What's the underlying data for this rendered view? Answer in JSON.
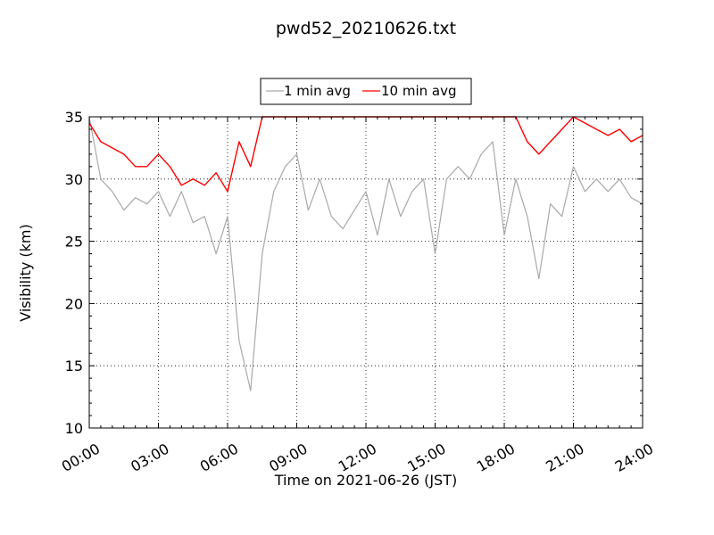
{
  "chart_data": {
    "type": "line",
    "title": "pwd52_20210626.txt",
    "xlabel": "Time on 2021-06-26 (JST)",
    "ylabel": "Visibility (km)",
    "xlim": [
      "00:00",
      "24:00"
    ],
    "ylim": [
      10,
      35
    ],
    "x_ticks": [
      "00:00",
      "03:00",
      "06:00",
      "09:00",
      "12:00",
      "15:00",
      "18:00",
      "21:00",
      "24:00"
    ],
    "y_ticks": [
      10,
      15,
      20,
      25,
      30,
      35
    ],
    "grid": true,
    "legend_position": "top-center",
    "series": [
      {
        "name": "1 min avg",
        "color": "#a9a9a9",
        "x": [
          "00:00",
          "00:30",
          "01:00",
          "01:30",
          "02:00",
          "02:30",
          "03:00",
          "03:30",
          "04:00",
          "04:30",
          "05:00",
          "05:30",
          "06:00",
          "06:30",
          "07:00",
          "07:30",
          "08:00",
          "08:30",
          "09:00",
          "09:30",
          "10:00",
          "10:30",
          "11:00",
          "11:30",
          "12:00",
          "12:30",
          "13:00",
          "13:30",
          "14:00",
          "14:30",
          "15:00",
          "15:30",
          "16:00",
          "16:30",
          "17:00",
          "17:30",
          "18:00",
          "18:30",
          "19:00",
          "19:30",
          "20:00",
          "20:30",
          "21:00",
          "21:30",
          "22:00",
          "22:30",
          "23:00",
          "23:30",
          "24:00"
        ],
        "y": [
          35,
          30,
          29,
          27.5,
          28.5,
          28,
          29,
          27,
          29,
          26.5,
          27,
          24,
          27,
          17,
          13,
          24,
          29,
          31,
          32,
          27.5,
          30,
          27,
          26,
          27.5,
          29,
          25.5,
          30,
          27,
          29,
          30,
          24,
          30,
          31,
          30,
          32,
          33,
          25.5,
          30,
          27,
          22,
          28,
          27,
          31,
          29,
          30,
          29,
          30,
          28.5,
          28
        ]
      },
      {
        "name": "10 min avg",
        "color": "#ff0000",
        "x": [
          "00:00",
          "00:30",
          "01:00",
          "01:30",
          "02:00",
          "02:30",
          "03:00",
          "03:30",
          "04:00",
          "04:30",
          "05:00",
          "05:30",
          "06:00",
          "06:30",
          "07:00",
          "07:30",
          "08:00",
          "08:30",
          "09:00",
          "09:30",
          "10:00",
          "10:30",
          "11:00",
          "11:30",
          "12:00",
          "12:30",
          "13:00",
          "13:30",
          "14:00",
          "14:30",
          "15:00",
          "15:30",
          "16:00",
          "16:30",
          "17:00",
          "17:30",
          "18:00",
          "18:30",
          "19:00",
          "19:30",
          "20:00",
          "20:30",
          "21:00",
          "21:30",
          "22:00",
          "22:30",
          "23:00",
          "23:30",
          "24:00"
        ],
        "y": [
          34.5,
          33,
          32.5,
          32,
          31,
          31,
          32,
          31,
          29.5,
          30,
          29.5,
          30.5,
          29,
          33,
          31,
          35,
          35,
          35,
          35,
          35,
          35,
          35,
          35,
          35,
          35,
          35,
          35,
          35,
          35,
          35,
          35,
          35,
          35,
          35,
          35,
          35,
          35,
          35,
          33,
          32,
          33,
          34,
          35,
          34.5,
          34,
          33.5,
          34,
          33,
          33.5
        ]
      }
    ]
  }
}
